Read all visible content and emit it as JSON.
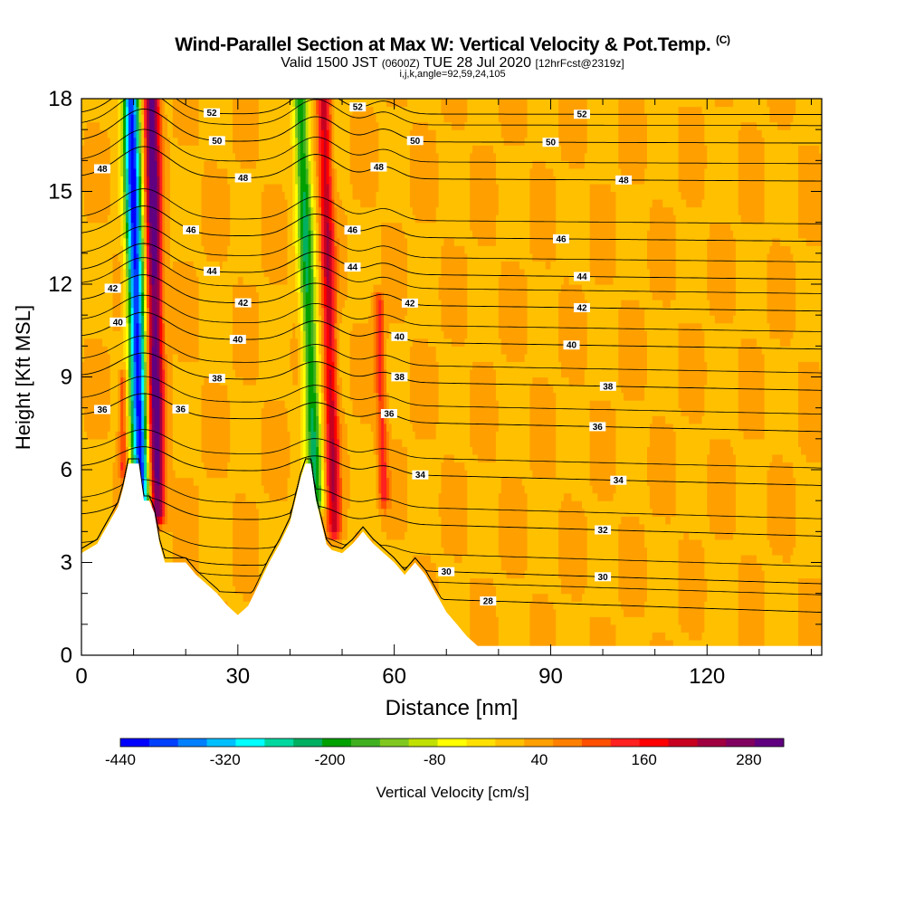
{
  "header": {
    "title": "Wind-Parallel Section at Max W: Vertical Velocity & Pot.Temp.",
    "title_mark": "(C)",
    "valid_prefix": "Valid 1500 JST",
    "valid_zulu": "(0600Z)",
    "valid_date": "TUE 28 Jul 2020",
    "valid_fcst": "[12hrFcst@2319z]",
    "indices": "i,j,k,angle=92,59,24,105"
  },
  "chart_data": {
    "type": "heatmap",
    "title": "Wind-Parallel Section at Max W: Vertical Velocity & Pot.Temp.",
    "xlabel": "Distance [nm]",
    "ylabel": "Height [Kft MSL]",
    "xlim": [
      0,
      142
    ],
    "ylim": [
      0,
      18
    ],
    "x_ticks": [
      0,
      30,
      60,
      90,
      120
    ],
    "y_ticks": [
      0,
      3,
      6,
      9,
      12,
      15,
      18
    ],
    "x_tick_labels": [
      "0",
      "30",
      "60",
      "90",
      "120"
    ],
    "y_tick_labels": [
      "0",
      "3",
      "6",
      "9",
      "12",
      "15",
      "18"
    ],
    "background_velocity_cm_s": 20,
    "terrain_height_kft": [
      [
        0,
        3.3
      ],
      [
        3,
        3.6
      ],
      [
        5,
        4.2
      ],
      [
        7,
        4.8
      ],
      [
        8,
        5.4
      ],
      [
        9,
        6.2
      ],
      [
        10,
        6.2
      ],
      [
        11,
        6.2
      ],
      [
        11.5,
        5.5
      ],
      [
        12,
        5.0
      ],
      [
        13,
        5.0
      ],
      [
        14,
        4.6
      ],
      [
        15,
        3.6
      ],
      [
        16,
        3.0
      ],
      [
        18,
        3.0
      ],
      [
        20,
        3.0
      ],
      [
        22,
        2.6
      ],
      [
        24,
        2.3
      ],
      [
        26,
        2.0
      ],
      [
        28,
        1.6
      ],
      [
        30,
        1.3
      ],
      [
        32,
        1.6
      ],
      [
        34,
        2.3
      ],
      [
        36,
        3.0
      ],
      [
        38,
        3.6
      ],
      [
        40,
        4.3
      ],
      [
        42,
        5.7
      ],
      [
        43,
        6.2
      ],
      [
        44,
        6.2
      ],
      [
        45,
        5.0
      ],
      [
        46,
        4.3
      ],
      [
        47,
        3.6
      ],
      [
        48,
        3.4
      ],
      [
        50,
        3.3
      ],
      [
        52,
        3.6
      ],
      [
        54,
        4.0
      ],
      [
        56,
        3.6
      ],
      [
        58,
        3.3
      ],
      [
        60,
        3.0
      ],
      [
        62,
        2.6
      ],
      [
        64,
        3.0
      ],
      [
        66,
        2.6
      ],
      [
        68,
        2.0
      ],
      [
        70,
        1.4
      ],
      [
        72,
        1.0
      ],
      [
        74,
        0.6
      ],
      [
        76,
        0.3
      ],
      [
        142,
        0.3
      ]
    ],
    "velocity_features": [
      {
        "name": "updraft-1",
        "x_base": 14.5,
        "x_top": 13.5,
        "y_base": 4.5,
        "y_top": 18,
        "half_width_nm": 1.5,
        "peak_cm_s": 300
      },
      {
        "name": "downdraft-1",
        "x_base": 11.5,
        "x_top": 9.5,
        "y_base": 5.0,
        "y_top": 18,
        "half_width_nm": 1.6,
        "peak_cm_s": -440
      },
      {
        "name": "updraft-2",
        "x_base": 48.5,
        "x_top": 46.5,
        "y_base": 4.0,
        "y_top": 18,
        "half_width_nm": 1.3,
        "peak_cm_s": 190
      },
      {
        "name": "downdraft-2",
        "x_base": 45.0,
        "x_top": 42.0,
        "y_base": 5.0,
        "y_top": 18,
        "half_width_nm": 1.5,
        "peak_cm_s": -230
      },
      {
        "name": "updraft-3",
        "x_base": 58.0,
        "x_top": 57.0,
        "y_base": 5.0,
        "y_top": 11.5,
        "half_width_nm": 1.0,
        "peak_cm_s": 110
      },
      {
        "name": "updraft-4",
        "x_base": 8.0,
        "x_top": 8.0,
        "y_base": 6.0,
        "y_top": 9.0,
        "half_width_nm": 0.8,
        "peak_cm_s": 110
      }
    ],
    "theta_contours": [
      {
        "value": 28,
        "base_height_kft": 1.8,
        "labels": [
          {
            "label": "28",
            "x": 78
          }
        ]
      },
      {
        "value": 30,
        "base_height_kft": 2.7,
        "labels": [
          {
            "label": "30",
            "x": 70
          },
          {
            "label": "30",
            "x": 100
          }
        ]
      },
      {
        "value": 32,
        "base_height_kft": 4.2,
        "labels": [
          {
            "label": "32",
            "x": 100
          }
        ]
      },
      {
        "value": 34,
        "base_height_kft": 5.8,
        "labels": [
          {
            "label": "34",
            "x": 65
          },
          {
            "label": "34",
            "x": 103
          }
        ]
      },
      {
        "value": 36,
        "base_height_kft": 7.5,
        "labels": [
          {
            "label": "36",
            "x": 4
          },
          {
            "label": "36",
            "x": 19
          },
          {
            "label": "36",
            "x": 59
          },
          {
            "label": "36",
            "x": 99
          }
        ]
      },
      {
        "value": 38,
        "base_height_kft": 8.8,
        "labels": [
          {
            "label": "38",
            "x": 26
          },
          {
            "label": "38",
            "x": 61
          },
          {
            "label": "38",
            "x": 101
          }
        ]
      },
      {
        "value": 40,
        "base_height_kft": 10.1,
        "labels": [
          {
            "label": "40",
            "x": 7
          },
          {
            "label": "40",
            "x": 30
          },
          {
            "label": "40",
            "x": 61
          },
          {
            "label": "40",
            "x": 94
          }
        ]
      },
      {
        "value": 42,
        "base_height_kft": 11.3,
        "labels": [
          {
            "label": "42",
            "x": 6
          },
          {
            "label": "42",
            "x": 31
          },
          {
            "label": "42",
            "x": 63
          },
          {
            "label": "42",
            "x": 96
          }
        ]
      },
      {
        "value": 44,
        "base_height_kft": 12.3,
        "labels": [
          {
            "label": "44",
            "x": 25
          },
          {
            "label": "44",
            "x": 52
          },
          {
            "label": "44",
            "x": 96
          }
        ]
      },
      {
        "value": 46,
        "base_height_kft": 13.5,
        "labels": [
          {
            "label": "46",
            "x": 21
          },
          {
            "label": "46",
            "x": 52
          },
          {
            "label": "46",
            "x": 92
          }
        ]
      },
      {
        "value": 48,
        "base_height_kft": 15.4,
        "labels": [
          {
            "label": "48",
            "x": 4
          },
          {
            "label": "48",
            "x": 31
          },
          {
            "label": "48",
            "x": 57
          },
          {
            "label": "48",
            "x": 104
          }
        ]
      },
      {
        "value": 50,
        "base_height_kft": 16.6,
        "labels": [
          {
            "label": "50",
            "x": 26
          },
          {
            "label": "50",
            "x": 64
          },
          {
            "label": "50",
            "x": 90
          }
        ]
      },
      {
        "value": 52,
        "base_height_kft": 17.5,
        "labels": [
          {
            "label": "52",
            "x": 25
          },
          {
            "label": "52",
            "x": 53
          },
          {
            "label": "52",
            "x": 96
          }
        ]
      }
    ],
    "colorbar": {
      "label": "Vertical Velocity [cm/s]",
      "min": -440,
      "max": 320,
      "tick_values": [
        -440,
        -320,
        -200,
        -80,
        40,
        160,
        280
      ],
      "tick_labels": [
        "-440",
        "-320",
        "-200",
        "-80",
        "40",
        "160",
        "280"
      ],
      "colors": [
        "#0000ff",
        "#0040ff",
        "#0080ff",
        "#00bfff",
        "#00ffff",
        "#00d8a0",
        "#00b060",
        "#00a000",
        "#40b020",
        "#80c820",
        "#c0e000",
        "#ffff00",
        "#ffe000",
        "#ffc000",
        "#ffa000",
        "#ff8000",
        "#ff5000",
        "#ff2020",
        "#ff0000",
        "#c80020",
        "#a00040",
        "#800060",
        "#600080"
      ]
    }
  }
}
